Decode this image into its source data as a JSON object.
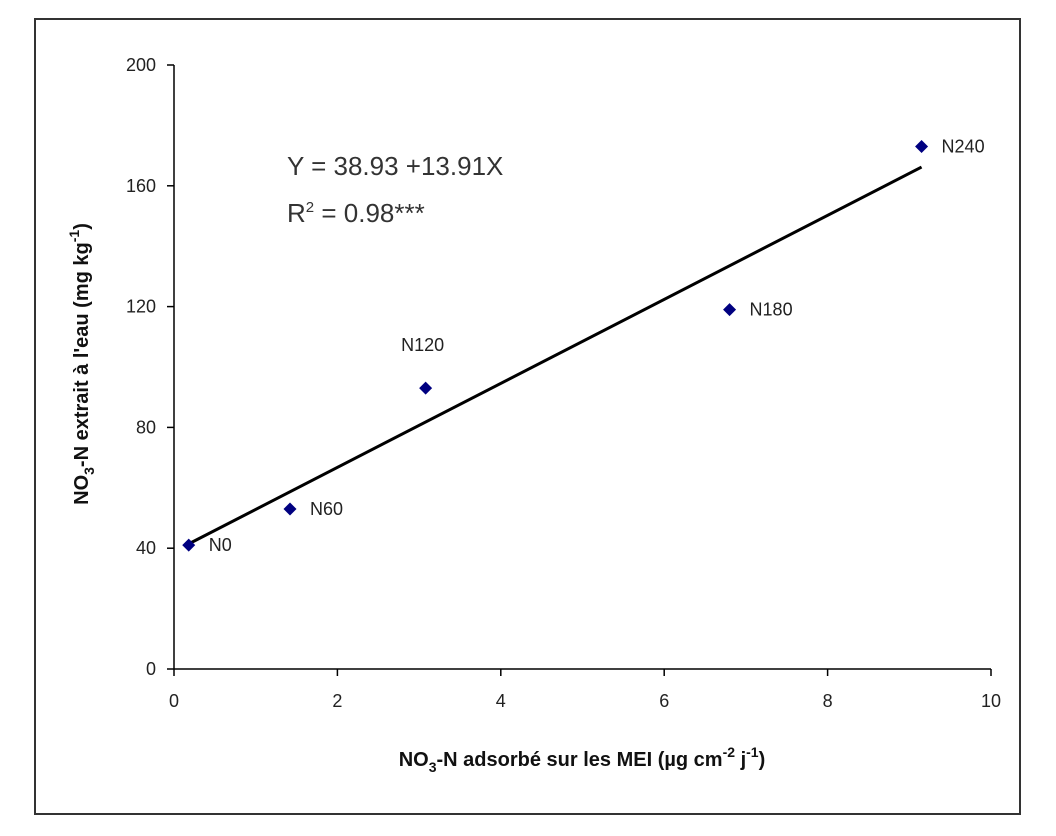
{
  "chart_data": {
    "type": "scatter",
    "title": "",
    "xlabel": {
      "pre": "NO",
      "sub": "3",
      "mid": "-N adsorbé sur les MEI (µg cm",
      "sup1": "-2",
      "mid2": " j",
      "sup2": "-1",
      "post": ")"
    },
    "ylabel": {
      "pre": "NO",
      "sub": "3",
      "mid": "-N extrait à l'eau (mg kg",
      "sup": "-1",
      "post": ")"
    },
    "xlim": [
      0,
      10
    ],
    "ylim": [
      0,
      200
    ],
    "xticks": [
      0,
      2,
      4,
      6,
      8,
      10
    ],
    "yticks": [
      0,
      40,
      80,
      120,
      160,
      200
    ],
    "xtick_labels": [
      "0",
      "2",
      "4",
      "6",
      "8",
      "10"
    ],
    "ytick_labels": [
      "0",
      "40",
      "80",
      "120",
      "160",
      "200"
    ],
    "grid": false,
    "marker_color": "#000080",
    "line_color": "#000000",
    "points": [
      {
        "label": "N0",
        "x": 0.18,
        "y": 41
      },
      {
        "label": "N60",
        "x": 1.42,
        "y": 53
      },
      {
        "label": "N120",
        "x": 3.08,
        "y": 93
      },
      {
        "label": "N180",
        "x": 6.8,
        "y": 119
      },
      {
        "label": "N240",
        "x": 9.15,
        "y": 173
      }
    ],
    "fit": {
      "intercept": 38.93,
      "slope": 13.91,
      "x_range": [
        0.18,
        9.15
      ],
      "equation": "Y = 38.93 +13.91X",
      "r2_label": "R",
      "r2_sup": "2",
      "r2_value": " = 0.98***"
    }
  }
}
